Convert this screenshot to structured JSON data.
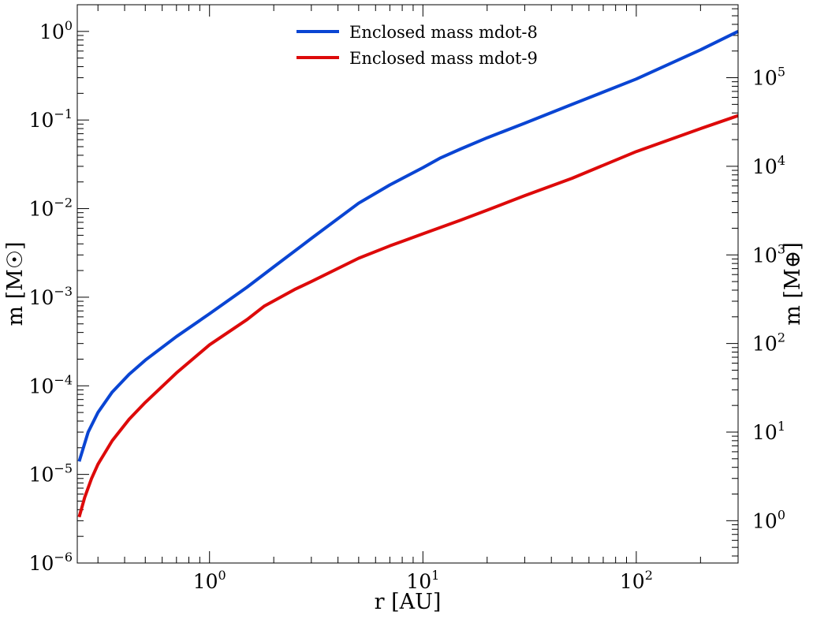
{
  "chart_data": {
    "type": "line",
    "xlabel": "r [AU]",
    "ylabel": "m [M☉]",
    "ylabel_right": "m [M⊕]",
    "xscale": "log",
    "yscale": "log",
    "xlim": [
      0.24,
      300
    ],
    "ylim": [
      1e-06,
      2
    ],
    "ylim_right_earth_mass": [
      0.333,
      666000
    ],
    "x_ticks": [
      {
        "value": 1,
        "base": "10",
        "exp": "0"
      },
      {
        "value": 10,
        "base": "10",
        "exp": "1"
      },
      {
        "value": 100,
        "base": "10",
        "exp": "2"
      }
    ],
    "y_ticks": [
      {
        "value": 1e-06,
        "base": "10",
        "exp": "−6"
      },
      {
        "value": 1e-05,
        "base": "10",
        "exp": "−5"
      },
      {
        "value": 0.0001,
        "base": "10",
        "exp": "−4"
      },
      {
        "value": 0.001,
        "base": "10",
        "exp": "−3"
      },
      {
        "value": 0.01,
        "base": "10",
        "exp": "−2"
      },
      {
        "value": 0.1,
        "base": "10",
        "exp": "−1"
      },
      {
        "value": 1,
        "base": "10",
        "exp": "0"
      }
    ],
    "y_ticks_right": [
      {
        "value": 1,
        "base": "10",
        "exp": "0"
      },
      {
        "value": 10,
        "base": "10",
        "exp": "1"
      },
      {
        "value": 100,
        "base": "10",
        "exp": "2"
      },
      {
        "value": 1000,
        "base": "10",
        "exp": "3"
      },
      {
        "value": 10000,
        "base": "10",
        "exp": "4"
      },
      {
        "value": 100000,
        "base": "10",
        "exp": "5"
      }
    ],
    "legend_position": "top-center",
    "grid": false,
    "series": [
      {
        "name": "Enclosed mass mdot-8",
        "color": "#0a45d3",
        "x": [
          0.245,
          0.27,
          0.3,
          0.35,
          0.42,
          0.5,
          0.7,
          1.0,
          1.5,
          2.0,
          3.0,
          5.0,
          7.0,
          10.0,
          12.0,
          15.0,
          20.0,
          30.0,
          50.0,
          100.0,
          200.0,
          300.0
        ],
        "y": [
          1.4e-05,
          3e-05,
          5e-05,
          8.5e-05,
          0.000135,
          0.000195,
          0.00036,
          0.00065,
          0.0013,
          0.0022,
          0.0046,
          0.0115,
          0.0185,
          0.029,
          0.037,
          0.047,
          0.063,
          0.092,
          0.15,
          0.29,
          0.62,
          1.0
        ]
      },
      {
        "name": "Enclosed mass mdot-9",
        "color": "#dd0a0a",
        "x": [
          0.245,
          0.26,
          0.28,
          0.3,
          0.35,
          0.42,
          0.5,
          0.7,
          1.0,
          1.5,
          1.8,
          2.5,
          3.0,
          5.0,
          7.0,
          10.0,
          15.0,
          20.0,
          30.0,
          50.0,
          100.0,
          200.0,
          300.0
        ],
        "y": [
          3.3e-06,
          5.5e-06,
          9e-06,
          1.3e-05,
          2.4e-05,
          4.2e-05,
          6.5e-05,
          0.00014,
          0.00029,
          0.00056,
          0.00079,
          0.00122,
          0.0015,
          0.00275,
          0.0038,
          0.0052,
          0.0074,
          0.0096,
          0.014,
          0.022,
          0.044,
          0.08,
          0.112
        ]
      }
    ]
  }
}
